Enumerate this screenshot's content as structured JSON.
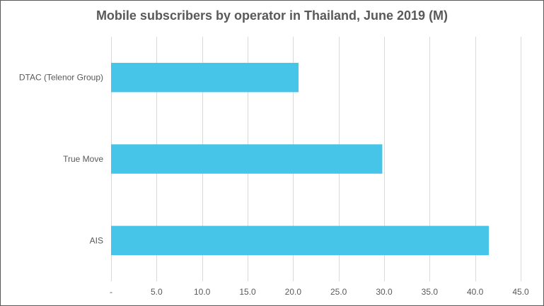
{
  "chart_data": {
    "type": "bar",
    "orientation": "horizontal",
    "title": "Mobile subscribers by operator in Thailand, June 2019 (M)",
    "categories": [
      "DTAC (Telenor Group)",
      "True Move",
      "AIS"
    ],
    "values": [
      20.6,
      29.8,
      41.5
    ],
    "xlabel": "",
    "ylabel": "",
    "xlim": [
      0,
      45
    ],
    "xticks": [
      0,
      5,
      10,
      15,
      20,
      25,
      30,
      35,
      40,
      45
    ],
    "xtick_labels": [
      "-",
      "5.0",
      "10.0",
      "15.0",
      "20.0",
      "25.0",
      "30.0",
      "35.0",
      "40.0",
      "45.0"
    ],
    "grid": "vertical",
    "legend": "none",
    "bar_color": "#47C5E8",
    "grid_color": "#D9D9D9",
    "text_color": "#595959"
  }
}
